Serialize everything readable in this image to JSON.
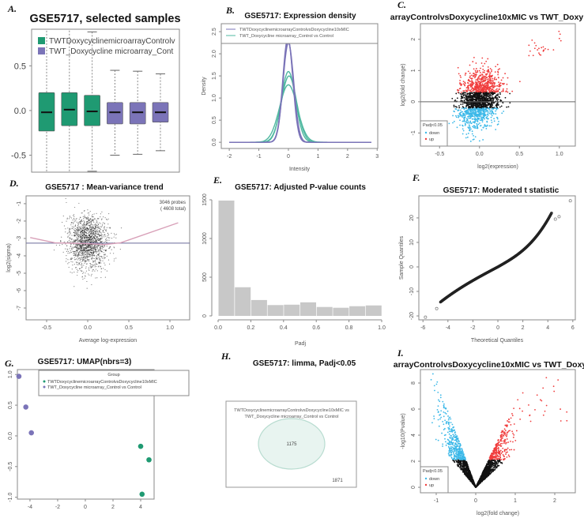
{
  "colors": {
    "green": "#1f9a72",
    "purple": "#7b74b8",
    "teal": "#4fb8a0",
    "up": "#f03c3c",
    "down": "#3bb8e8",
    "bar": "#c8c8c8"
  },
  "chart_data": [
    {
      "panel": "A.",
      "type": "box",
      "title": "GSE5717, selected samples",
      "legend": [
        "TWTDoxycyclinemicroarrayControlv",
        "TWT_Doxycycline microarray_Cont"
      ],
      "yticks": [
        "0.5",
        "0.0",
        "-0.5"
      ],
      "ylim": [
        -0.69,
        0.91
      ],
      "boxes": [
        {
          "group": 0,
          "q1": -0.23,
          "median": -0.02,
          "q3": 0.2,
          "lower": -0.8,
          "upper": 1.0
        },
        {
          "group": 0,
          "q1": -0.17,
          "median": 0.01,
          "q3": 0.2,
          "lower": -0.8,
          "upper": 0.93
        },
        {
          "group": 0,
          "q1": -0.17,
          "median": -0.01,
          "q3": 0.17,
          "lower": -0.68,
          "upper": 0.88
        },
        {
          "group": 1,
          "q1": -0.15,
          "median": -0.02,
          "q3": 0.09,
          "lower": -0.5,
          "upper": 0.45
        },
        {
          "group": 1,
          "q1": -0.15,
          "median": -0.02,
          "q3": 0.09,
          "lower": -0.49,
          "upper": 0.44
        },
        {
          "group": 1,
          "q1": -0.13,
          "median": -0.02,
          "q3": 0.09,
          "lower": -0.45,
          "upper": 0.41
        }
      ]
    },
    {
      "panel": "B.",
      "type": "line",
      "title": "GSE5717: Expression density",
      "xlabel": "Intensity",
      "ylabel": "Density",
      "xticks": [
        "-2",
        "-1",
        "0",
        "1",
        "2",
        "3"
      ],
      "yticks": [
        "0.0",
        "0.5",
        "1.0",
        "1.5",
        "2.0",
        "2.5"
      ],
      "xlim": [
        -2.27,
        3.02
      ],
      "ylim": [
        -0.14,
        2.68
      ],
      "legend": [
        "TWTDoxycyclinemicroarrayControlvsDoxycycline10xMIC",
        "TWT_Doxycycline microarray_Control vs Control"
      ],
      "series": [
        {
          "group": 0,
          "peak": 1.6,
          "center": 0.0,
          "sd": 0.24
        },
        {
          "group": 0,
          "peak": 1.5,
          "center": 0.02,
          "sd": 0.26
        },
        {
          "group": 0,
          "peak": 1.3,
          "center": 0.0,
          "sd": 0.3
        },
        {
          "group": 1,
          "peak": 2.35,
          "center": -0.02,
          "sd": 0.17
        },
        {
          "group": 1,
          "peak": 2.3,
          "center": -0.01,
          "sd": 0.17
        },
        {
          "group": 1,
          "peak": 2.25,
          "center": 0.0,
          "sd": 0.18
        }
      ]
    },
    {
      "panel": "C.",
      "type": "scatter",
      "title": "arrayControlvsDoxycycline10xMIC vs TWT_Doxy",
      "xlabel": "log2(expression)",
      "ylabel": "log2(fold change)",
      "xticks": [
        "-0.5",
        "0.0",
        "0.5",
        "1.0"
      ],
      "yticks": [
        "2",
        "1",
        "0",
        "-1"
      ],
      "xlim": [
        -0.74,
        1.2
      ],
      "ylim": [
        -1.42,
        2.5
      ],
      "hline": 0,
      "legend": {
        "title": "Padj<0.05",
        "items": [
          "down",
          "up"
        ]
      }
    },
    {
      "panel": "D.",
      "type": "scatter",
      "title": "GSE5717 : Mean-variance trend",
      "xlabel": "Average log-expression",
      "ylabel": "log2(sigma)",
      "xticks": [
        "-0.5",
        "0.0",
        "0.5",
        "1.0"
      ],
      "yticks": [
        "-1",
        "-2",
        "-3",
        "-4",
        "-5",
        "-6",
        "-7"
      ],
      "xlim": [
        -0.75,
        1.24
      ],
      "ylim": [
        -7.68,
        -0.55
      ],
      "hline": -3.27,
      "annotation": [
        "3046 probes",
        "( 4608 total)"
      ],
      "trend": [
        [
          -0.7,
          -2.95
        ],
        [
          -0.4,
          -3.25
        ],
        [
          0.0,
          -3.3
        ],
        [
          0.2,
          -3.35
        ],
        [
          0.4,
          -3.25
        ],
        [
          1.1,
          -2.1
        ]
      ]
    },
    {
      "panel": "E.",
      "type": "bar",
      "title": "GSE5717: Adjusted P-value counts",
      "xlabel": "Padj",
      "xticks": [
        "0.0",
        "0.2",
        "0.4",
        "0.6",
        "0.8",
        "1.0"
      ],
      "yticks": [
        "0",
        "500",
        "1000",
        "1500"
      ],
      "categories": [
        "0.0-0.1",
        "0.1-0.2",
        "0.2-0.3",
        "0.3-0.4",
        "0.4-0.5",
        "0.5-0.6",
        "0.6-0.7",
        "0.7-0.8",
        "0.8-0.9",
        "0.9-1.0"
      ],
      "values": [
        1490,
        370,
        205,
        140,
        145,
        175,
        115,
        105,
        125,
        135
      ],
      "ylim": [
        0,
        1500
      ]
    },
    {
      "panel": "F.",
      "type": "scatter",
      "title": "GSE5717: Moderated t statistic",
      "xlabel": "Theoretical Quantiles",
      "ylabel": "Sample Quantiles",
      "xticks": [
        "-6",
        "-4",
        "-2",
        "0",
        "2",
        "4",
        "6"
      ],
      "yticks": [
        "20",
        "10",
        "0",
        "-10",
        "-20"
      ],
      "xlim": [
        -6.33,
        6.2
      ],
      "ylim": [
        -21.6,
        29
      ],
      "outliers": [
        [
          -5.8,
          -20.5
        ],
        [
          -4.9,
          -17
        ],
        [
          5.8,
          27
        ],
        [
          4.9,
          20.5
        ],
        [
          4.6,
          19.5
        ]
      ]
    },
    {
      "panel": "G.",
      "type": "scatter",
      "title": "GSE5717: UMAP(nbrs=3)",
      "xticks": [
        "-4",
        "-2",
        "0",
        "2",
        "4"
      ],
      "yticks": [
        "1.0",
        "0.5",
        "0.0",
        "-0.5",
        "-1.0"
      ],
      "xlim": [
        -4.91,
        4.97
      ],
      "ylim": [
        -1.03,
        1.08
      ],
      "legend": {
        "title": "Group",
        "items": [
          "TWTDoxycyclinemicroarrayControlvsDoxycycline10xMIC",
          "TWT_Doxycycline microarray_Control vs Control"
        ]
      },
      "points": [
        {
          "x": -4.8,
          "y": 0.97,
          "group": 1
        },
        {
          "x": -4.3,
          "y": 0.47,
          "group": 1
        },
        {
          "x": -3.9,
          "y": 0.05,
          "group": 1
        },
        {
          "x": 4.0,
          "y": -0.17,
          "group": 0
        },
        {
          "x": 4.6,
          "y": -0.39,
          "group": 0
        },
        {
          "x": 4.1,
          "y": -0.95,
          "group": 0
        }
      ]
    },
    {
      "panel": "H.",
      "type": "venn",
      "title": "GSE5717: limma, Padj<0.05",
      "set_label": [
        "TWTDoxycyclinemicroarrayControlvsDoxycycline10xMIC vs",
        "TWT_Doxycycline microarray_Control vs Control"
      ],
      "inside": "1175",
      "outside": "1871"
    },
    {
      "panel": "I.",
      "type": "scatter",
      "title": "arrayControlvsDoxycycline10xMIC vs TWT_Doxy",
      "xlabel": "log2(fold change)",
      "ylabel": "-log10(Pvalue)",
      "xticks": [
        "-1",
        "0",
        "1",
        "2"
      ],
      "yticks": [
        "8",
        "6",
        "4",
        "2",
        "0"
      ],
      "xlim": [
        -1.4,
        2.52
      ],
      "ylim": [
        -0.42,
        9.03
      ],
      "legend": {
        "title": "Padj<0.05",
        "items": [
          "down",
          "up"
        ]
      }
    }
  ]
}
